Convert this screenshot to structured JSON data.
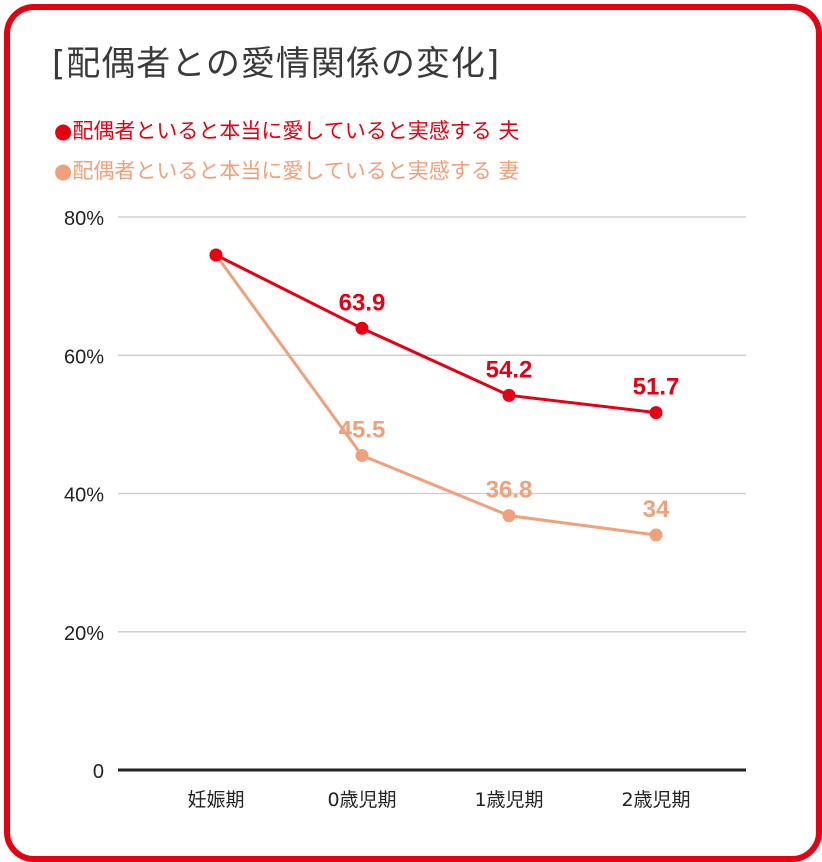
{
  "title": "[配偶者との愛情関係の変化]",
  "legend": [
    {
      "label": "●配偶者といると本当に愛していると実感する 夫",
      "color": "#e60012"
    },
    {
      "label": "●配偶者といると本当に愛していると実感する 妻",
      "color": "#f0a07a"
    }
  ],
  "chart_data": {
    "type": "line",
    "categories": [
      "妊娠期",
      "0歳児期",
      "1歳児期",
      "2歳児期"
    ],
    "ylim": [
      0,
      80
    ],
    "yticks": [
      0,
      20,
      40,
      60,
      80
    ],
    "ytick_labels": [
      "0",
      "20%",
      "40%",
      "60%",
      "80%"
    ],
    "grid": true,
    "series": [
      {
        "name": "配偶者といると本当に愛していると実感する 夫",
        "color": "#e60012",
        "values": [
          74.5,
          63.9,
          54.2,
          51.7
        ],
        "labels": [
          "",
          "63.9",
          "54.2",
          "51.7"
        ]
      },
      {
        "name": "配偶者といると本当に愛していると実感する 妻",
        "color": "#f0a07a",
        "values": [
          74.5,
          45.5,
          36.8,
          34
        ],
        "labels": [
          "",
          "45.5",
          "36.8",
          "34"
        ]
      }
    ]
  }
}
